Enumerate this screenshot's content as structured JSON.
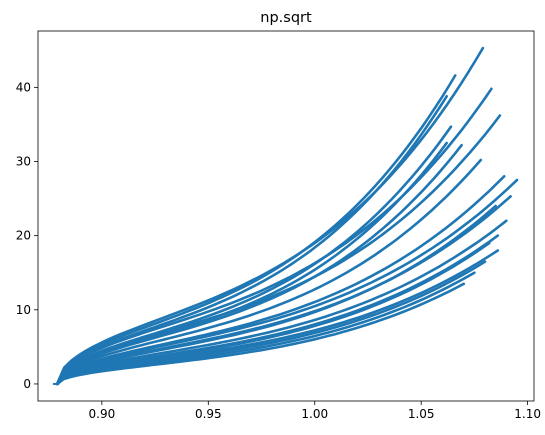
{
  "chart_data": {
    "type": "scatter",
    "title": "np.sqrt",
    "xlabel": "",
    "ylabel": "",
    "xlim": [
      0.87,
      1.103
    ],
    "ylim": [
      -2.3,
      47.6
    ],
    "xticks": [
      0.9,
      0.95,
      1.0,
      1.05,
      1.1
    ],
    "xtick_labels": [
      "0.90",
      "0.95",
      "1.00",
      "1.05",
      "1.10"
    ],
    "yticks": [
      0,
      10,
      20,
      30,
      40
    ],
    "ytick_labels": [
      "0",
      "10",
      "20",
      "30",
      "40"
    ],
    "grid": false,
    "legend": "none",
    "series_color": "#1f77b4",
    "marker": "small-dot",
    "description_curves": [
      {
        "end": [
          1.079,
          45.3
        ]
      },
      {
        "end": [
          1.066,
          41.6
        ]
      },
      {
        "end": [
          1.083,
          39.8
        ]
      },
      {
        "end": [
          1.062,
          38.8
        ]
      },
      {
        "end": [
          1.087,
          36.2
        ]
      },
      {
        "end": [
          1.064,
          34.7
        ]
      },
      {
        "end": [
          1.062,
          32.5
        ]
      },
      {
        "end": [
          1.069,
          32.2
        ]
      },
      {
        "end": [
          1.078,
          30.2
        ]
      },
      {
        "end": [
          1.089,
          28.0
        ]
      },
      {
        "end": [
          1.095,
          27.5
        ]
      },
      {
        "end": [
          1.092,
          25.3
        ]
      },
      {
        "end": [
          1.085,
          24.0
        ]
      },
      {
        "end": [
          1.09,
          22.0
        ]
      },
      {
        "end": [
          1.086,
          20.0
        ]
      },
      {
        "end": [
          1.082,
          19.0
        ]
      },
      {
        "end": [
          1.086,
          18.0
        ]
      },
      {
        "end": [
          1.08,
          16.5
        ]
      },
      {
        "end": [
          1.075,
          15.0
        ]
      },
      {
        "end": [
          1.07,
          13.5
        ]
      }
    ],
    "start_point": [
      0.879,
      0.0
    ]
  }
}
